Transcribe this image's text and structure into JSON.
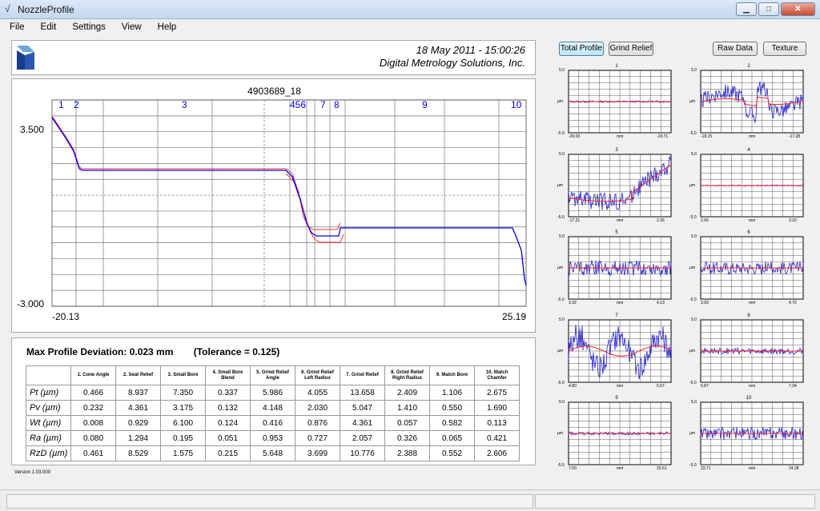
{
  "window": {
    "title": "NozzleProfile"
  },
  "menu": [
    "File",
    "Edit",
    "Settings",
    "View",
    "Help"
  ],
  "header": {
    "date": "18 May 2011 - 15:00:26",
    "company": "Digital Metrology Solutions, Inc."
  },
  "plot": {
    "title": "4903689_18",
    "y_max_label": "3.500",
    "y_min_label": "-3.000",
    "x_min_label": "-20.13",
    "x_max_label": "25.19",
    "zone_labels": [
      "1",
      "2",
      "3",
      "456",
      "7",
      "8",
      "9",
      "10"
    ]
  },
  "summary": {
    "max_deviation": "Max Profile Deviation: 0.023 mm",
    "tolerance": "(Tolerance =  0.125)"
  },
  "table": {
    "headers": [
      "1. Cone Angle",
      "2. Seat Relief",
      "3. Small Bore",
      "4. Small Bore Blend",
      "5. Grind Relief Angle",
      "6. Grind Relief Left Radius",
      "7. Grind Relief",
      "8. Grind Relief Right Radius",
      "9. Match Bore",
      "10. Match Chamfer"
    ],
    "rows": [
      {
        "label": "Pt (µm)",
        "values": [
          "0.466",
          "8.937",
          "7.350",
          "0.337",
          "5.986",
          "4.055",
          "13.658",
          "2.409",
          "1.106",
          "2.675"
        ]
      },
      {
        "label": "Pv (µm)",
        "values": [
          "0.232",
          "4.361",
          "3.175",
          "0.132",
          "4.148",
          "2.030",
          "5.047",
          "1.410",
          "0.550",
          "1.690"
        ]
      },
      {
        "label": "Wt (µm)",
        "values": [
          "0.008",
          "0.929",
          "6.100",
          "0.124",
          "0.416",
          "0.876",
          "4.361",
          "0.057",
          "0.582",
          "0.113"
        ]
      },
      {
        "label": "Ra (µm)",
        "values": [
          "0.080",
          "1.294",
          "0.195",
          "0.051",
          "0.953",
          "0.727",
          "2.057",
          "0.326",
          "0.065",
          "0.421"
        ]
      },
      {
        "label": "RzD (µm)",
        "values": [
          "0.461",
          "8.529",
          "1.575",
          "0.215",
          "5.648",
          "3.699",
          "10.776",
          "2.388",
          "0.552",
          "2.606"
        ]
      }
    ]
  },
  "version": "Version 1.03.000",
  "buttons": {
    "total_profile": "Total Profile",
    "grind_relief": "Grind Relief",
    "raw_data": "Raw Data",
    "texture": "Texture"
  },
  "mini_plots": [
    {
      "title": "1",
      "ytop": "5.0",
      "ymid": "µm",
      "ybot": "-5.0",
      "xmin": "-20.03",
      "xmid": "mm",
      "xmax": "-19.71"
    },
    {
      "title": "2",
      "ytop": "5.0",
      "ymid": "µm",
      "ybot": "-5.0",
      "xmin": "-18.15",
      "xmid": "mm",
      "xmax": "-17.28"
    },
    {
      "title": "3",
      "ytop": "5.0",
      "ymid": "µm",
      "ybot": "-5.0",
      "xmin": "-17.21",
      "xmid": "mm",
      "xmax": "2.36"
    },
    {
      "title": "4",
      "ytop": "5.0",
      "ymid": "µm",
      "ybot": "-5.0",
      "xmin": "2.56",
      "xmid": "mm",
      "xmax": "3.20"
    },
    {
      "title": "5",
      "ytop": "5.0",
      "ymid": "µm",
      "ybot": "-5.0",
      "xmin": "3.32",
      "xmid": "mm",
      "xmax": "4.13"
    },
    {
      "title": "6",
      "ytop": "5.0",
      "ymid": "µm",
      "ybot": "-5.0",
      "xmin": "3.93",
      "xmid": "mm",
      "xmax": "4.70"
    },
    {
      "title": "7",
      "ytop": "5.0",
      "ymid": "µm",
      "ybot": "-5.0",
      "xmin": "4.80",
      "xmid": "mm",
      "xmax": "6.67"
    },
    {
      "title": "8",
      "ytop": "5.0",
      "ymid": "µm",
      "ybot": "-5.0",
      "xmin": "6.87",
      "xmid": "mm",
      "xmax": "7.34"
    },
    {
      "title": "9",
      "ytop": "5.0",
      "ymid": "µm",
      "ybot": "-5.0",
      "xmin": "7.50",
      "xmid": "mm",
      "xmax": "23.51"
    },
    {
      "title": "10",
      "ytop": "5.0",
      "ymid": "µm",
      "ybot": "-5.0",
      "xmin": "23.71",
      "xmid": "mm",
      "xmax": "24.28"
    }
  ],
  "colors": {
    "profile": "#0000ff",
    "tolerance": "#ff0000",
    "accent_blue": "#1a3c8c"
  }
}
